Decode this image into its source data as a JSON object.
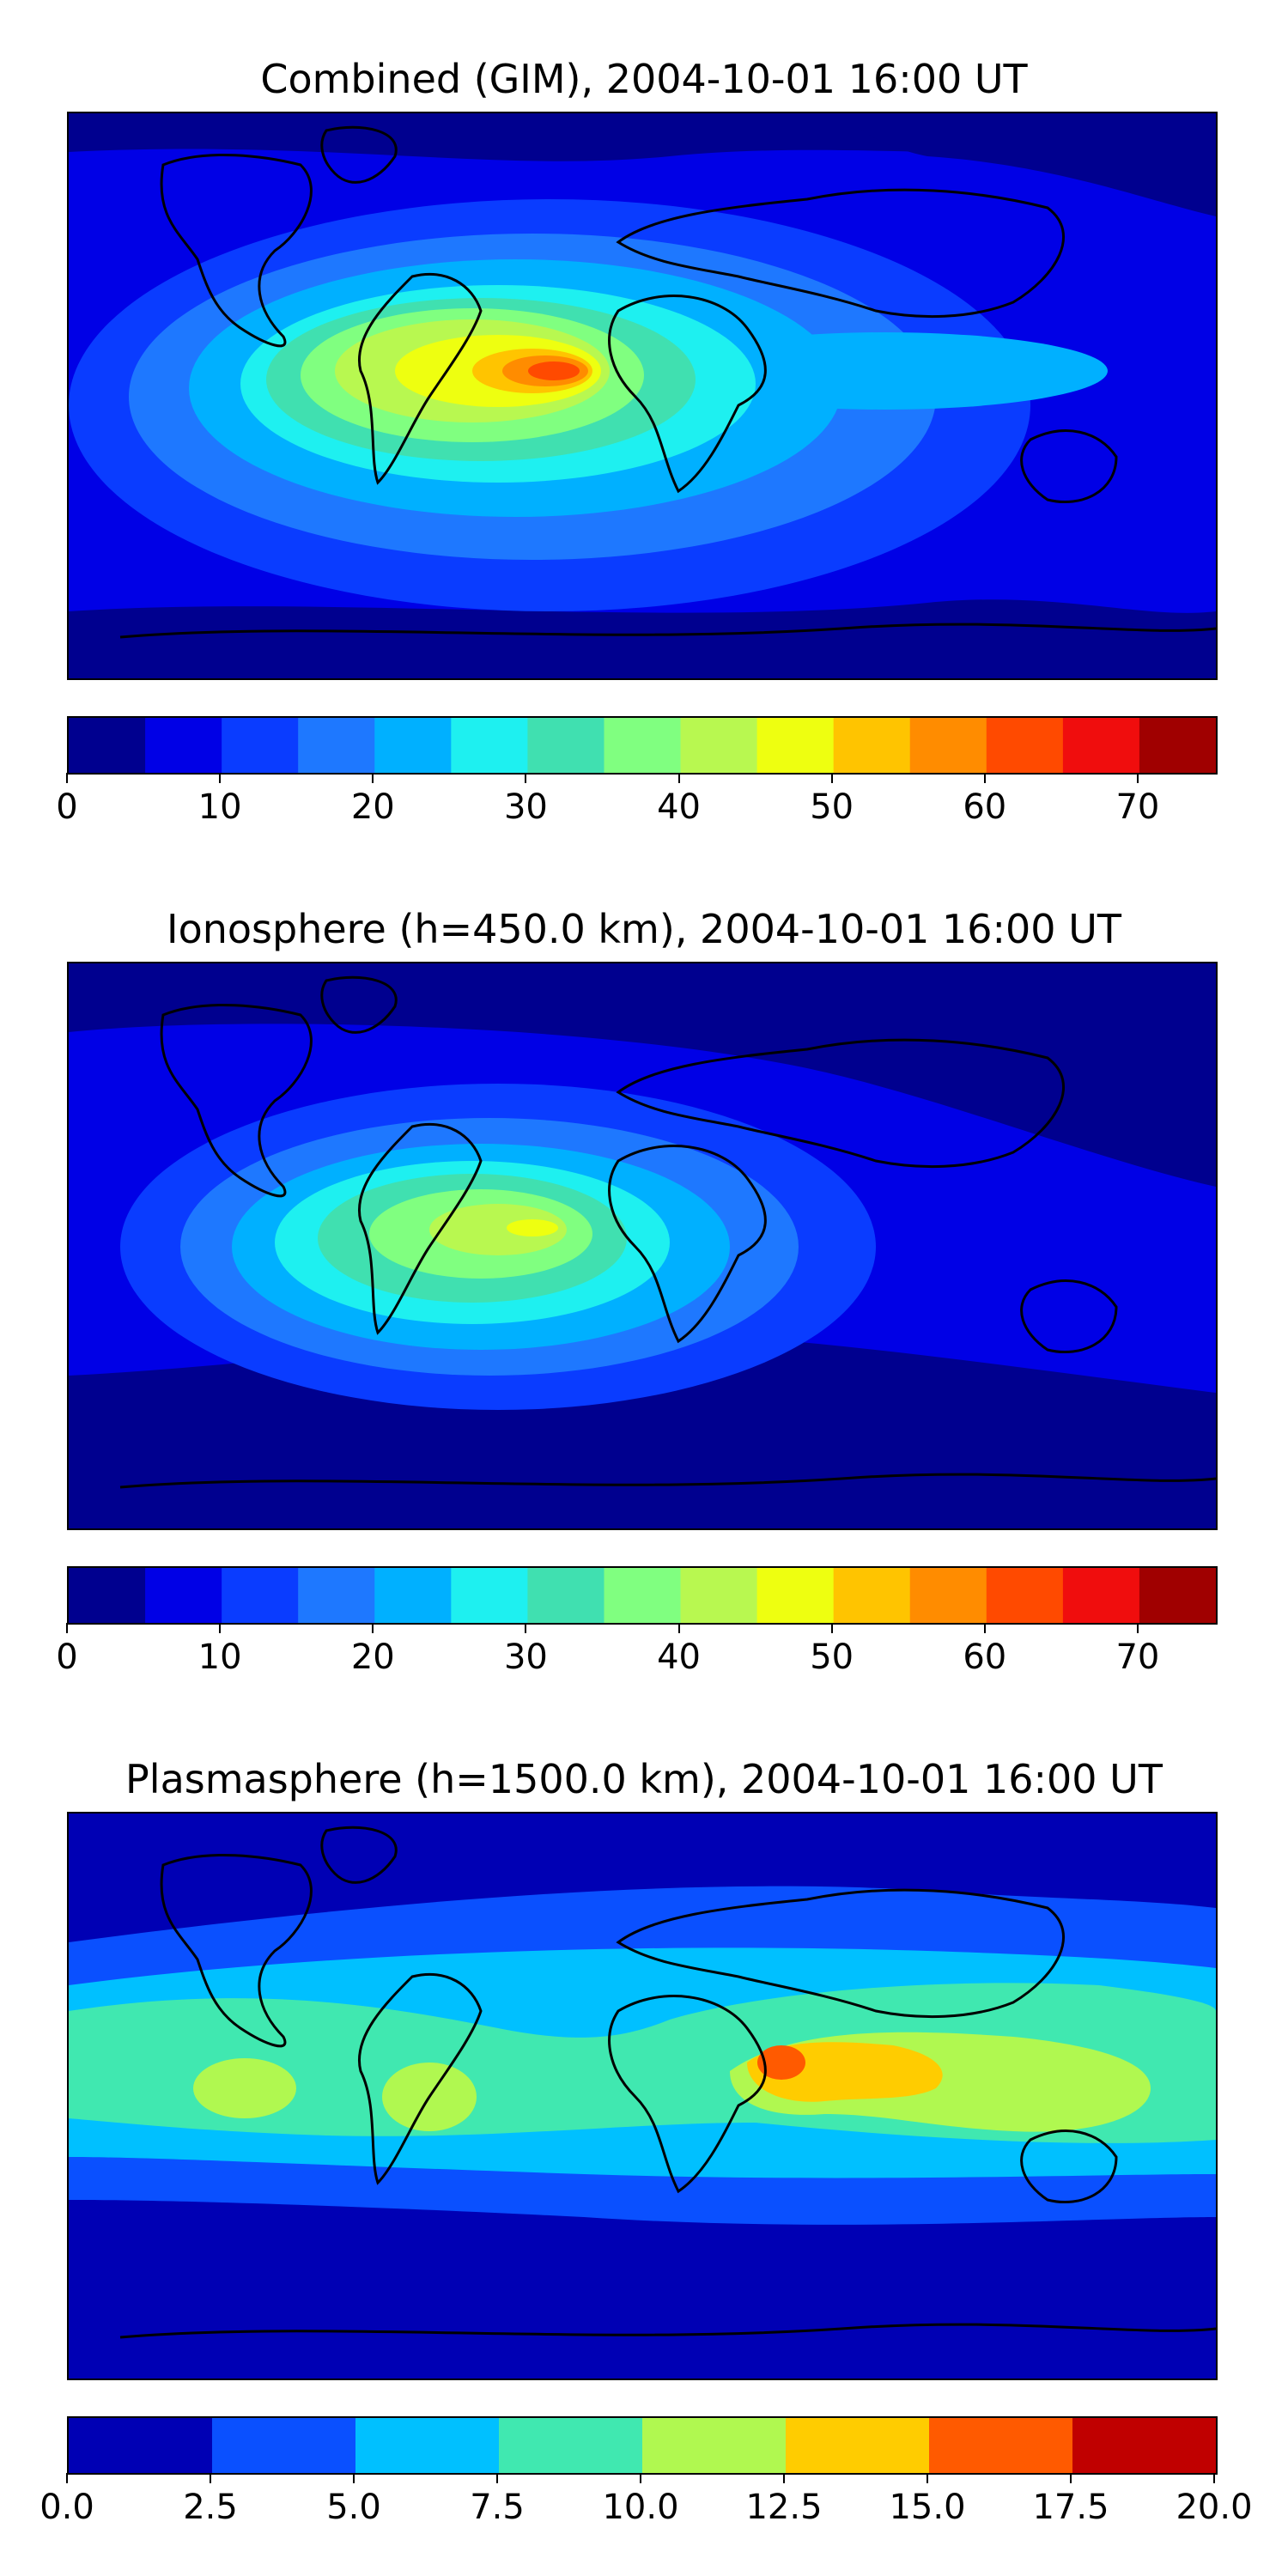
{
  "panels": [
    {
      "title": "Combined (GIM), 2004-10-01 16:00 UT",
      "colorbar": {
        "ticks": [
          "0",
          "10",
          "20",
          "30",
          "40",
          "50",
          "60",
          "70"
        ],
        "tick_values": [
          0,
          10,
          20,
          30,
          40,
          50,
          60,
          70
        ],
        "min": 0,
        "max": 75,
        "levels": [
          0,
          5,
          10,
          15,
          20,
          25,
          30,
          35,
          40,
          45,
          50,
          55,
          60,
          65,
          70,
          75
        ]
      }
    },
    {
      "title": "Ionosphere  (h=450.0 km), 2004-10-01 16:00 UT",
      "colorbar": {
        "ticks": [
          "0",
          "10",
          "20",
          "30",
          "40",
          "50",
          "60",
          "70"
        ],
        "tick_values": [
          0,
          10,
          20,
          30,
          40,
          50,
          60,
          70
        ],
        "min": 0,
        "max": 75,
        "levels": [
          0,
          5,
          10,
          15,
          20,
          25,
          30,
          35,
          40,
          45,
          50,
          55,
          60,
          65,
          70,
          75
        ]
      }
    },
    {
      "title": "Plasmasphere (h=1500.0 km), 2004-10-01 16:00 UT",
      "colorbar": {
        "ticks": [
          "0.0",
          "2.5",
          "5.0",
          "7.5",
          "10.0",
          "12.5",
          "15.0",
          "17.5",
          "20.0"
        ],
        "tick_values": [
          0,
          2.5,
          5,
          7.5,
          10,
          12.5,
          15,
          17.5,
          20
        ],
        "min": 0,
        "max": 20,
        "levels": [
          0,
          2.5,
          5,
          7.5,
          10,
          12.5,
          15,
          17.5,
          20
        ]
      }
    }
  ],
  "colors": {
    "jet15": [
      "#00008f",
      "#0000e6",
      "#0a3cff",
      "#1e78ff",
      "#00b0ff",
      "#1ef0f0",
      "#40e0b0",
      "#80ff80",
      "#b8f850",
      "#eeff10",
      "#ffc400",
      "#ff8c00",
      "#ff4a00",
      "#f00d0d",
      "#a00000"
    ],
    "jet8": [
      "#0000b4",
      "#0a50ff",
      "#00c0ff",
      "#40e8b0",
      "#b0f850",
      "#ffcc00",
      "#ff5a00",
      "#c00000"
    ],
    "coast": "#000000"
  }
}
